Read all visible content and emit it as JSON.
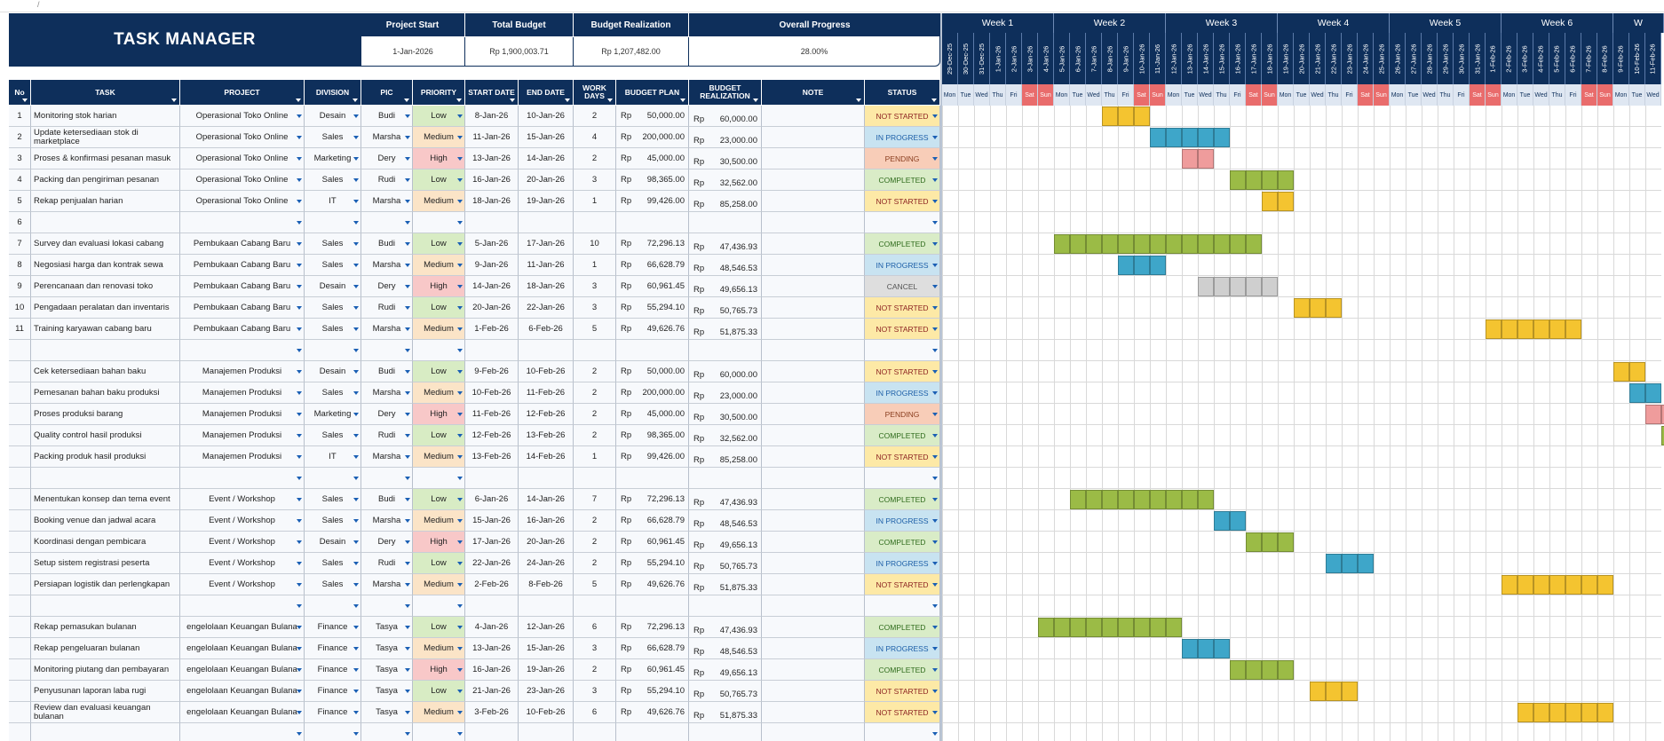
{
  "title": "TASK MANAGER",
  "top_note": "/",
  "summary": {
    "project_start_label": "Project Start",
    "project_start": "1-Jan-2026",
    "total_budget_label": "Total Budget",
    "total_budget": "Rp 1,900,003.71",
    "budget_realization_label": "Budget Realization",
    "budget_realization": "Rp 1,207,482.00",
    "overall_progress_label": "Overall Progress",
    "overall_progress": "28.00%"
  },
  "columns": [
    "No",
    "TASK",
    "PROJECT",
    "DIVISION",
    "PIC",
    "PRIORITY",
    "START DATE",
    "END DATE",
    "WORK DAYS",
    "BUDGET PLAN",
    "BUDGET REALIZATION",
    "NOTE",
    "STATUS"
  ],
  "colors": {
    "navy": "#0e2f5b",
    "low": "#d8ecc4",
    "medium": "#fbe4c7",
    "high": "#f8c8c8",
    "not_started": "#fde9a6",
    "in_progress": "#c8e3f1",
    "pending": "#f8cdb8",
    "completed": "#d9ecc7",
    "cancel": "#dedede",
    "bar_yellow": "#f4c430",
    "bar_blue": "#3ea6c9",
    "bar_pink": "#ef9c9c",
    "bar_green": "#9bbb46",
    "bar_grey": "#cfcfcf",
    "weekend": "#e96c6c"
  },
  "weeks": [
    "Week 1",
    "Week 2",
    "Week 3",
    "Week 4",
    "Week 5",
    "Week 6",
    "W"
  ],
  "dates": [
    "29-Dec-25",
    "30-Dec-25",
    "31-Dec-25",
    "1-Jan-26",
    "2-Jan-26",
    "3-Jan-26",
    "4-Jan-26",
    "5-Jan-26",
    "6-Jan-26",
    "7-Jan-26",
    "8-Jan-26",
    "9-Jan-26",
    "10-Jan-26",
    "11-Jan-26",
    "12-Jan-26",
    "13-Jan-26",
    "14-Jan-26",
    "15-Jan-26",
    "16-Jan-26",
    "17-Jan-26",
    "18-Jan-26",
    "19-Jan-26",
    "20-Jan-26",
    "21-Jan-26",
    "22-Jan-26",
    "23-Jan-26",
    "24-Jan-26",
    "25-Jan-26",
    "26-Jan-26",
    "27-Jan-26",
    "28-Jan-26",
    "29-Jan-26",
    "30-Jan-26",
    "31-Jan-26",
    "1-Feb-26",
    "2-Feb-26",
    "3-Feb-26",
    "4-Feb-26",
    "5-Feb-26",
    "6-Feb-26",
    "7-Feb-26",
    "8-Feb-26",
    "9-Feb-26",
    "10-Feb-26",
    "11-Feb-26"
  ],
  "day_names": [
    "Mon",
    "Tue",
    "Wed",
    "Thu",
    "Fri",
    "Sat",
    "Sun"
  ],
  "rows": [
    {
      "no": "1",
      "task": "Monitoring stok harian",
      "project": "Operasional Toko Online",
      "division": "Desain",
      "pic": "Budi",
      "priority": "Low",
      "start": "8-Jan-26",
      "end": "10-Jan-26",
      "days": "2",
      "plan": "50,000.00",
      "real": "60,000.00",
      "note": "",
      "status": "NOT STARTED",
      "bar_start": 10,
      "bar_len": 3,
      "bar": "yellow"
    },
    {
      "no": "2",
      "task": "Update ketersediaan stok di marketplace",
      "project": "Operasional Toko Online",
      "division": "Sales",
      "pic": "Marsha",
      "priority": "Medium",
      "start": "11-Jan-26",
      "end": "15-Jan-26",
      "days": "4",
      "plan": "200,000.00",
      "real": "23,000.00",
      "note": "",
      "status": "IN PROGRESS",
      "bar_start": 13,
      "bar_len": 5,
      "bar": "blue"
    },
    {
      "no": "3",
      "task": "Proses & konfirmasi pesanan masuk",
      "project": "Operasional Toko Online",
      "division": "Marketing",
      "pic": "Dery",
      "priority": "High",
      "start": "13-Jan-26",
      "end": "14-Jan-26",
      "days": "2",
      "plan": "45,000.00",
      "real": "30,500.00",
      "note": "",
      "status": "PENDING",
      "bar_start": 15,
      "bar_len": 2,
      "bar": "pink"
    },
    {
      "no": "4",
      "task": "Packing dan pengiriman pesanan",
      "project": "Operasional Toko Online",
      "division": "Sales",
      "pic": "Rudi",
      "priority": "Low",
      "start": "16-Jan-26",
      "end": "20-Jan-26",
      "days": "3",
      "plan": "98,365.00",
      "real": "32,562.00",
      "note": "",
      "status": "COMPLETED",
      "bar_start": 18,
      "bar_len": 4,
      "bar": "green"
    },
    {
      "no": "5",
      "task": "Rekap penjualan harian",
      "project": "Operasional Toko Online",
      "division": "IT",
      "pic": "Marsha",
      "priority": "Medium",
      "start": "18-Jan-26",
      "end": "19-Jan-26",
      "days": "1",
      "plan": "99,426.00",
      "real": "85,258.00",
      "note": "",
      "status": "NOT STARTED",
      "bar_start": 20,
      "bar_len": 2,
      "bar": "yellow"
    },
    {
      "no": "6",
      "task": "",
      "project": "",
      "division": "",
      "pic": "",
      "priority": "",
      "start": "",
      "end": "",
      "days": "",
      "plan": "",
      "real": "",
      "note": "",
      "status": "",
      "bar_start": 0,
      "bar_len": 0,
      "bar": ""
    },
    {
      "no": "7",
      "task": "Survey dan evaluasi lokasi cabang",
      "project": "Pembukaan Cabang Baru",
      "division": "Sales",
      "pic": "Budi",
      "priority": "Low",
      "start": "5-Jan-26",
      "end": "17-Jan-26",
      "days": "10",
      "plan": "72,296.13",
      "real": "47,436.93",
      "note": "",
      "status": "COMPLETED",
      "bar_start": 7,
      "bar_len": 13,
      "bar": "green"
    },
    {
      "no": "8",
      "task": "Negosiasi harga dan kontrak sewa",
      "project": "Pembukaan Cabang Baru",
      "division": "Sales",
      "pic": "Marsha",
      "priority": "Medium",
      "start": "9-Jan-26",
      "end": "11-Jan-26",
      "days": "1",
      "plan": "66,628.79",
      "real": "48,546.53",
      "note": "",
      "status": "IN PROGRESS",
      "bar_start": 11,
      "bar_len": 3,
      "bar": "blue"
    },
    {
      "no": "9",
      "task": "Perencanaan dan renovasi toko",
      "project": "Pembukaan Cabang Baru",
      "division": "Desain",
      "pic": "Dery",
      "priority": "High",
      "start": "14-Jan-26",
      "end": "18-Jan-26",
      "days": "3",
      "plan": "60,961.45",
      "real": "49,656.13",
      "note": "",
      "status": "CANCEL",
      "bar_start": 16,
      "bar_len": 5,
      "bar": "grey"
    },
    {
      "no": "10",
      "task": "Pengadaan peralatan dan inventaris",
      "project": "Pembukaan Cabang Baru",
      "division": "Sales",
      "pic": "Rudi",
      "priority": "Low",
      "start": "20-Jan-26",
      "end": "22-Jan-26",
      "days": "3",
      "plan": "55,294.10",
      "real": "50,765.73",
      "note": "",
      "status": "NOT STARTED",
      "bar_start": 22,
      "bar_len": 3,
      "bar": "yellow"
    },
    {
      "no": "11",
      "task": "Training karyawan cabang baru",
      "project": "Pembukaan Cabang Baru",
      "division": "Sales",
      "pic": "Marsha",
      "priority": "Medium",
      "start": "1-Feb-26",
      "end": "6-Feb-26",
      "days": "5",
      "plan": "49,626.76",
      "real": "51,875.33",
      "note": "",
      "status": "NOT STARTED",
      "bar_start": 34,
      "bar_len": 6,
      "bar": "yellow"
    },
    {
      "no": "",
      "task": "",
      "project": "",
      "division": "",
      "pic": "",
      "priority": "",
      "start": "",
      "end": "",
      "days": "",
      "plan": "",
      "real": "",
      "note": "",
      "status": "",
      "bar_start": 0,
      "bar_len": 0,
      "bar": ""
    },
    {
      "no": "",
      "task": "Cek ketersediaan bahan baku",
      "project": "Manajemen Produksi",
      "division": "Desain",
      "pic": "Budi",
      "priority": "Low",
      "start": "9-Feb-26",
      "end": "10-Feb-26",
      "days": "2",
      "plan": "50,000.00",
      "real": "60,000.00",
      "note": "",
      "status": "NOT STARTED",
      "bar_start": 42,
      "bar_len": 2,
      "bar": "yellow"
    },
    {
      "no": "",
      "task": "Pemesanan bahan baku produksi",
      "project": "Manajemen Produksi",
      "division": "Sales",
      "pic": "Marsha",
      "priority": "Medium",
      "start": "10-Feb-26",
      "end": "11-Feb-26",
      "days": "2",
      "plan": "200,000.00",
      "real": "23,000.00",
      "note": "",
      "status": "IN PROGRESS",
      "bar_start": 43,
      "bar_len": 2,
      "bar": "blue"
    },
    {
      "no": "",
      "task": "Proses produksi barang",
      "project": "Manajemen Produksi",
      "division": "Marketing",
      "pic": "Dery",
      "priority": "High",
      "start": "11-Feb-26",
      "end": "12-Feb-26",
      "days": "2",
      "plan": "45,000.00",
      "real": "30,500.00",
      "note": "",
      "status": "PENDING",
      "bar_start": 44,
      "bar_len": 2,
      "bar": "pink"
    },
    {
      "no": "",
      "task": "Quality control hasil produksi",
      "project": "Manajemen Produksi",
      "division": "Sales",
      "pic": "Rudi",
      "priority": "Low",
      "start": "12-Feb-26",
      "end": "13-Feb-26",
      "days": "2",
      "plan": "98,365.00",
      "real": "32,562.00",
      "note": "",
      "status": "COMPLETED",
      "bar_start": 45,
      "bar_len": 2,
      "bar": "green"
    },
    {
      "no": "",
      "task": "Packing produk hasil produksi",
      "project": "Manajemen Produksi",
      "division": "IT",
      "pic": "Marsha",
      "priority": "Medium",
      "start": "13-Feb-26",
      "end": "14-Feb-26",
      "days": "1",
      "plan": "99,426.00",
      "real": "85,258.00",
      "note": "",
      "status": "NOT STARTED",
      "bar_start": 0,
      "bar_len": 0,
      "bar": ""
    },
    {
      "no": "",
      "task": "",
      "project": "",
      "division": "",
      "pic": "",
      "priority": "",
      "start": "",
      "end": "",
      "days": "",
      "plan": "",
      "real": "",
      "note": "",
      "status": "",
      "bar_start": 0,
      "bar_len": 0,
      "bar": ""
    },
    {
      "no": "",
      "task": "Menentukan konsep dan tema event",
      "project": "Event / Workshop",
      "division": "Sales",
      "pic": "Budi",
      "priority": "Low",
      "start": "6-Jan-26",
      "end": "14-Jan-26",
      "days": "7",
      "plan": "72,296.13",
      "real": "47,436.93",
      "note": "",
      "status": "COMPLETED",
      "bar_start": 8,
      "bar_len": 9,
      "bar": "green"
    },
    {
      "no": "",
      "task": "Booking venue dan jadwal acara",
      "project": "Event / Workshop",
      "division": "Sales",
      "pic": "Marsha",
      "priority": "Medium",
      "start": "15-Jan-26",
      "end": "16-Jan-26",
      "days": "2",
      "plan": "66,628.79",
      "real": "48,546.53",
      "note": "",
      "status": "IN PROGRESS",
      "bar_start": 17,
      "bar_len": 2,
      "bar": "blue"
    },
    {
      "no": "",
      "task": "Koordinasi dengan pembicara",
      "project": "Event / Workshop",
      "division": "Desain",
      "pic": "Dery",
      "priority": "High",
      "start": "17-Jan-26",
      "end": "20-Jan-26",
      "days": "2",
      "plan": "60,961.45",
      "real": "49,656.13",
      "note": "",
      "status": "COMPLETED",
      "bar_start": 19,
      "bar_len": 3,
      "bar": "green"
    },
    {
      "no": "",
      "task": "Setup sistem registrasi peserta",
      "project": "Event / Workshop",
      "division": "Sales",
      "pic": "Rudi",
      "priority": "Low",
      "start": "22-Jan-26",
      "end": "24-Jan-26",
      "days": "2",
      "plan": "55,294.10",
      "real": "50,765.73",
      "note": "",
      "status": "IN PROGRESS",
      "bar_start": 24,
      "bar_len": 3,
      "bar": "blue"
    },
    {
      "no": "",
      "task": "Persiapan logistik dan perlengkapan",
      "project": "Event / Workshop",
      "division": "Sales",
      "pic": "Marsha",
      "priority": "Medium",
      "start": "2-Feb-26",
      "end": "8-Feb-26",
      "days": "5",
      "plan": "49,626.76",
      "real": "51,875.33",
      "note": "",
      "status": "NOT STARTED",
      "bar_start": 35,
      "bar_len": 7,
      "bar": "yellow"
    },
    {
      "no": "",
      "task": "",
      "project": "",
      "division": "",
      "pic": "",
      "priority": "",
      "start": "",
      "end": "",
      "days": "",
      "plan": "",
      "real": "",
      "note": "",
      "status": "",
      "bar_start": 0,
      "bar_len": 0,
      "bar": ""
    },
    {
      "no": "",
      "task": "Rekap pemasukan bulanan",
      "project": "engelolaan Keuangan Bulana",
      "division": "Finance",
      "pic": "Tasya",
      "priority": "Low",
      "start": "4-Jan-26",
      "end": "12-Jan-26",
      "days": "6",
      "plan": "72,296.13",
      "real": "47,436.93",
      "note": "",
      "status": "COMPLETED",
      "bar_start": 6,
      "bar_len": 9,
      "bar": "green"
    },
    {
      "no": "",
      "task": "Rekap pengeluaran bulanan",
      "project": "engelolaan Keuangan Bulana",
      "division": "Finance",
      "pic": "Tasya",
      "priority": "Medium",
      "start": "13-Jan-26",
      "end": "15-Jan-26",
      "days": "3",
      "plan": "66,628.79",
      "real": "48,546.53",
      "note": "",
      "status": "IN PROGRESS",
      "bar_start": 15,
      "bar_len": 3,
      "bar": "blue"
    },
    {
      "no": "",
      "task": "Monitoring piutang dan pembayaran",
      "project": "engelolaan Keuangan Bulana",
      "division": "Finance",
      "pic": "Tasya",
      "priority": "High",
      "start": "16-Jan-26",
      "end": "19-Jan-26",
      "days": "2",
      "plan": "60,961.45",
      "real": "49,656.13",
      "note": "",
      "status": "COMPLETED",
      "bar_start": 18,
      "bar_len": 4,
      "bar": "green"
    },
    {
      "no": "",
      "task": "Penyusunan laporan laba rugi",
      "project": "engelolaan Keuangan Bulana",
      "division": "Finance",
      "pic": "Tasya",
      "priority": "Low",
      "start": "21-Jan-26",
      "end": "23-Jan-26",
      "days": "3",
      "plan": "55,294.10",
      "real": "50,765.73",
      "note": "",
      "status": "NOT STARTED",
      "bar_start": 23,
      "bar_len": 3,
      "bar": "yellow"
    },
    {
      "no": "",
      "task": "Review dan evaluasi keuangan bulanan",
      "project": "engelolaan Keuangan Bulana",
      "division": "Finance",
      "pic": "Tasya",
      "priority": "Medium",
      "start": "3-Feb-26",
      "end": "10-Feb-26",
      "days": "6",
      "plan": "49,626.76",
      "real": "51,875.33",
      "note": "",
      "status": "NOT STARTED",
      "bar_start": 36,
      "bar_len": 6,
      "bar": "yellow"
    },
    {
      "no": "",
      "task": "",
      "project": "",
      "division": "",
      "pic": "",
      "priority": "",
      "start": "",
      "end": "",
      "days": "",
      "plan": "",
      "real": "",
      "note": "",
      "status": "",
      "bar_start": 0,
      "bar_len": 0,
      "bar": ""
    }
  ]
}
